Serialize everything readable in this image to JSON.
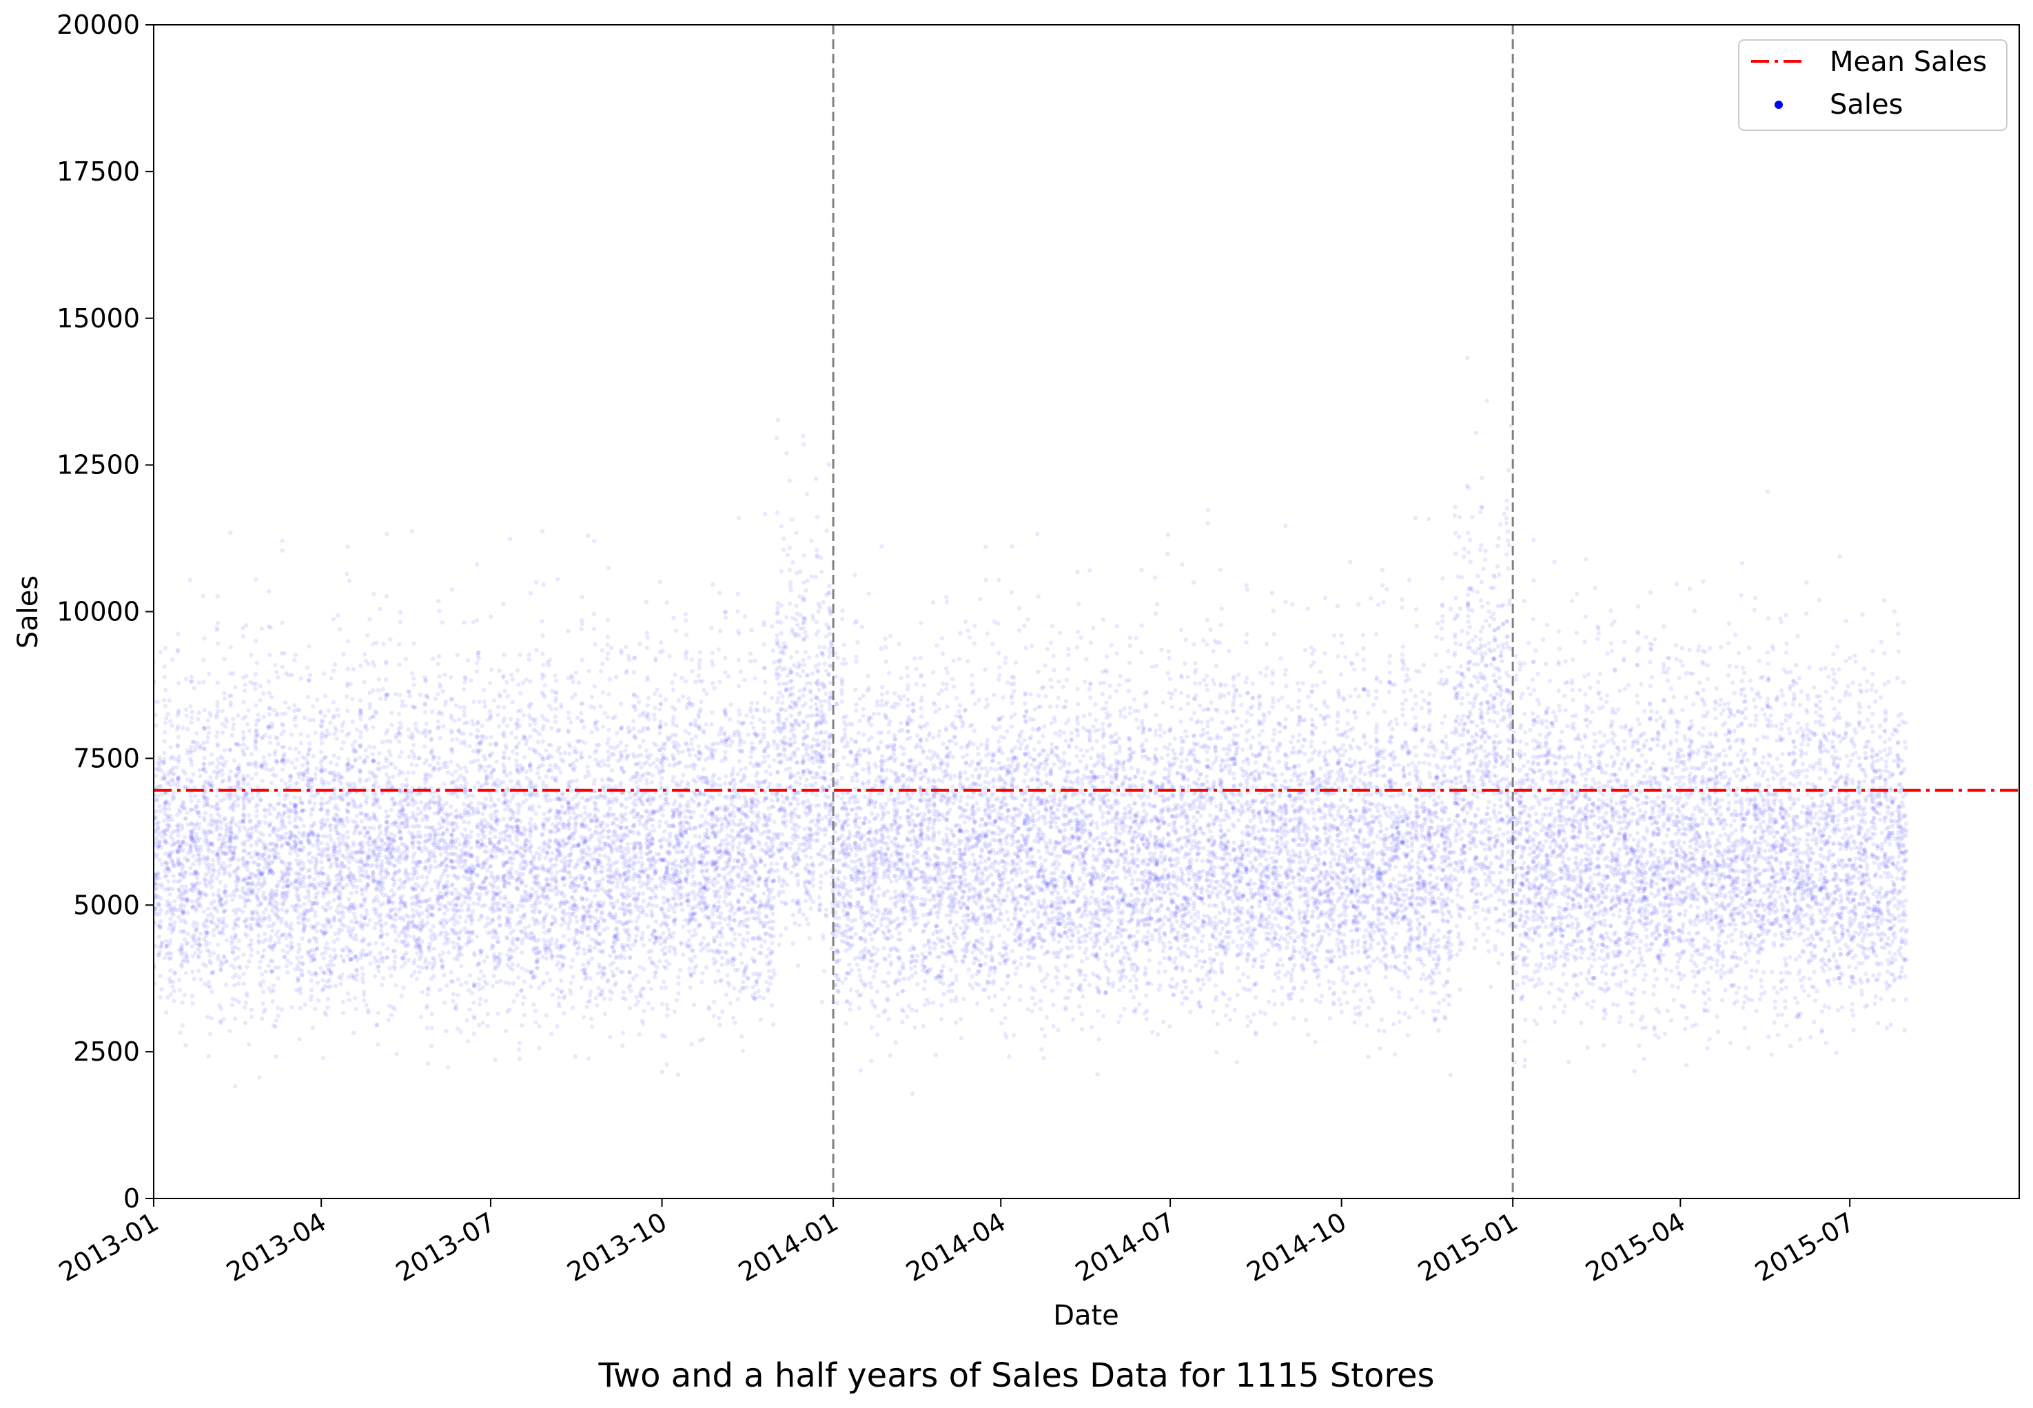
{
  "chart_data": {
    "type": "scatter",
    "title": "Two and a half years of Sales Data for 1115 Stores",
    "xlabel": "Date",
    "ylabel": "Sales",
    "x_range": [
      "2013-01-01",
      "2015-09-30"
    ],
    "ylim": [
      0,
      20000
    ],
    "x_ticks": [
      "2013-01",
      "2013-04",
      "2013-07",
      "2013-10",
      "2014-01",
      "2014-04",
      "2014-07",
      "2014-10",
      "2015-01",
      "2015-04",
      "2015-07"
    ],
    "y_ticks": [
      0,
      2500,
      5000,
      7500,
      10000,
      12500,
      15000,
      17500,
      20000
    ],
    "grid": false,
    "legend_position": "top-right",
    "data_x_range": [
      "2013-01-01",
      "2015-07-31"
    ],
    "mean_sales": 6955,
    "year_boundaries": [
      "2014-01-01",
      "2015-01-01"
    ],
    "series": [
      {
        "name": "Mean Sales",
        "kind": "line",
        "style": "dash-dot",
        "color": "#ff0000",
        "value": 6955
      },
      {
        "name": "Sales",
        "kind": "scatter",
        "color": "#0000ff",
        "typical_range": [
          2500,
          10000
        ],
        "dense_core": [
          3500,
          6500
        ]
      }
    ],
    "divider_color": "#808080"
  }
}
